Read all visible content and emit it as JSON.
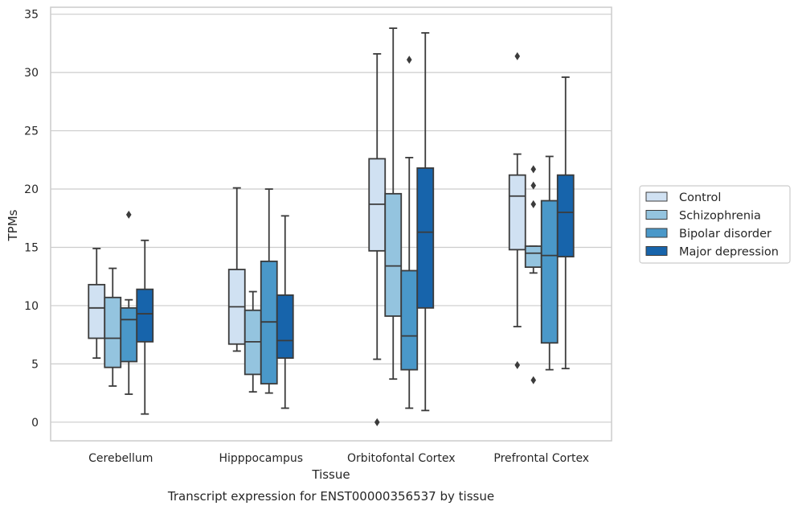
{
  "chart_data": {
    "type": "box",
    "title": "",
    "caption": "Transcript expression for ENST00000356537 by tissue",
    "xlabel": "Tissue",
    "ylabel": "TPMs",
    "ylim": [
      -1.6,
      35.6
    ],
    "yticks": [
      0,
      5,
      10,
      15,
      20,
      25,
      30,
      35
    ],
    "grid": "horizontal",
    "legend_position": "right",
    "categories": [
      "Cerebellum",
      "Hipppocampus",
      "Orbitofontal Cortex",
      "Prefrontal Cortex"
    ],
    "series": [
      {
        "name": "Control",
        "color": "#d0e1f2",
        "boxes": [
          {
            "whisker_low": 5.5,
            "q1": 7.2,
            "median": 9.8,
            "q3": 11.8,
            "whisker_high": 14.9,
            "outliers": []
          },
          {
            "whisker_low": 6.1,
            "q1": 6.7,
            "median": 9.9,
            "q3": 13.1,
            "whisker_high": 20.1,
            "outliers": []
          },
          {
            "whisker_low": 5.4,
            "q1": 14.7,
            "median": 18.7,
            "q3": 22.6,
            "whisker_high": 31.6,
            "outliers": [
              0.0
            ]
          },
          {
            "whisker_low": 8.2,
            "q1": 14.8,
            "median": 19.4,
            "q3": 21.2,
            "whisker_high": 23.0,
            "outliers": [
              4.9,
              31.4
            ]
          }
        ]
      },
      {
        "name": "Schizophrenia",
        "color": "#94c4df",
        "boxes": [
          {
            "whisker_low": 3.1,
            "q1": 4.7,
            "median": 7.2,
            "q3": 10.7,
            "whisker_high": 13.2,
            "outliers": []
          },
          {
            "whisker_low": 2.6,
            "q1": 4.1,
            "median": 6.9,
            "q3": 9.6,
            "whisker_high": 11.2,
            "outliers": []
          },
          {
            "whisker_low": 3.7,
            "q1": 9.1,
            "median": 13.4,
            "q3": 19.6,
            "whisker_high": 33.8,
            "outliers": []
          },
          {
            "whisker_low": 12.8,
            "q1": 13.3,
            "median": 14.5,
            "q3": 15.1,
            "whisker_high": 15.1,
            "outliers": [
              3.6,
              18.7,
              20.3,
              21.7
            ]
          }
        ]
      },
      {
        "name": "Bipolar disorder",
        "color": "#4a98c9",
        "boxes": [
          {
            "whisker_low": 2.4,
            "q1": 5.2,
            "median": 8.8,
            "q3": 9.8,
            "whisker_high": 10.5,
            "outliers": [
              17.8
            ]
          },
          {
            "whisker_low": 2.5,
            "q1": 3.3,
            "median": 8.6,
            "q3": 13.8,
            "whisker_high": 20.0,
            "outliers": []
          },
          {
            "whisker_low": 1.2,
            "q1": 4.5,
            "median": 7.4,
            "q3": 13.0,
            "whisker_high": 22.7,
            "outliers": [
              31.1
            ]
          },
          {
            "whisker_low": 4.5,
            "q1": 6.8,
            "median": 14.3,
            "q3": 19.0,
            "whisker_high": 22.8,
            "outliers": []
          }
        ]
      },
      {
        "name": "Major depression",
        "color": "#1764ab",
        "boxes": [
          {
            "whisker_low": 0.7,
            "q1": 6.9,
            "median": 9.3,
            "q3": 11.4,
            "whisker_high": 15.6,
            "outliers": []
          },
          {
            "whisker_low": 1.2,
            "q1": 5.5,
            "median": 7.0,
            "q3": 10.9,
            "whisker_high": 17.7,
            "outliers": []
          },
          {
            "whisker_low": 1.0,
            "q1": 9.8,
            "median": 16.3,
            "q3": 21.8,
            "whisker_high": 33.4,
            "outliers": []
          },
          {
            "whisker_low": 4.6,
            "q1": 14.2,
            "median": 18.0,
            "q3": 21.2,
            "whisker_high": 29.6,
            "outliers": []
          }
        ]
      }
    ]
  },
  "colors": {
    "grid": "#cccccc",
    "frame": "#cccccc",
    "lines": "#3b3b3b",
    "text": "#262626"
  }
}
